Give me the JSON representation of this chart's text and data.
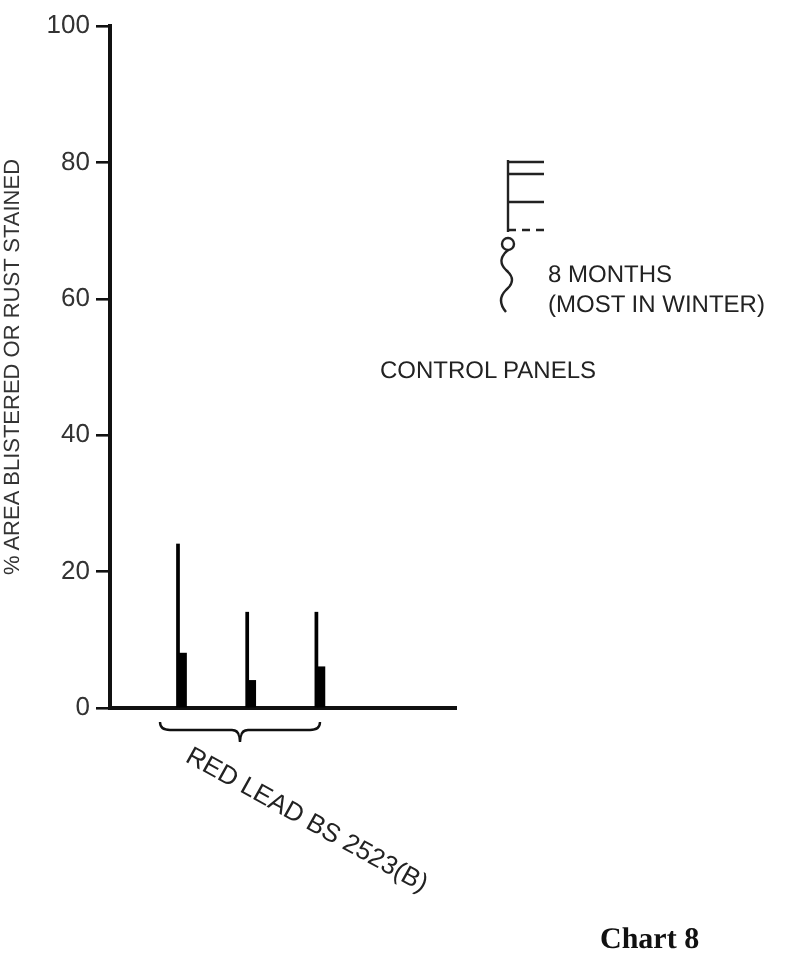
{
  "chart_data": {
    "type": "bar",
    "ylabel": "% AREA BLISTERED OR RUST STAINED",
    "categories": [
      null,
      null,
      null,
      null,
      null,
      null
    ],
    "series": [
      {
        "color": "#000000",
        "values": [
          null,
          24,
          14,
          14,
          null,
          null
        ]
      },
      {
        "color": "#000000",
        "values": [
          null,
          8,
          4,
          6,
          null,
          null
        ]
      }
    ],
    "ylim": [
      0,
      100
    ],
    "yticks": [
      0,
      20,
      40,
      60,
      80,
      100
    ],
    "grid": false,
    "legend": false,
    "annotations": [
      "8 MONTHS",
      "(MOST IN WINTER)",
      "CONTROL PANELS",
      "RED LEAD BS 2523(B)",
      "Chart 8"
    ]
  }
}
